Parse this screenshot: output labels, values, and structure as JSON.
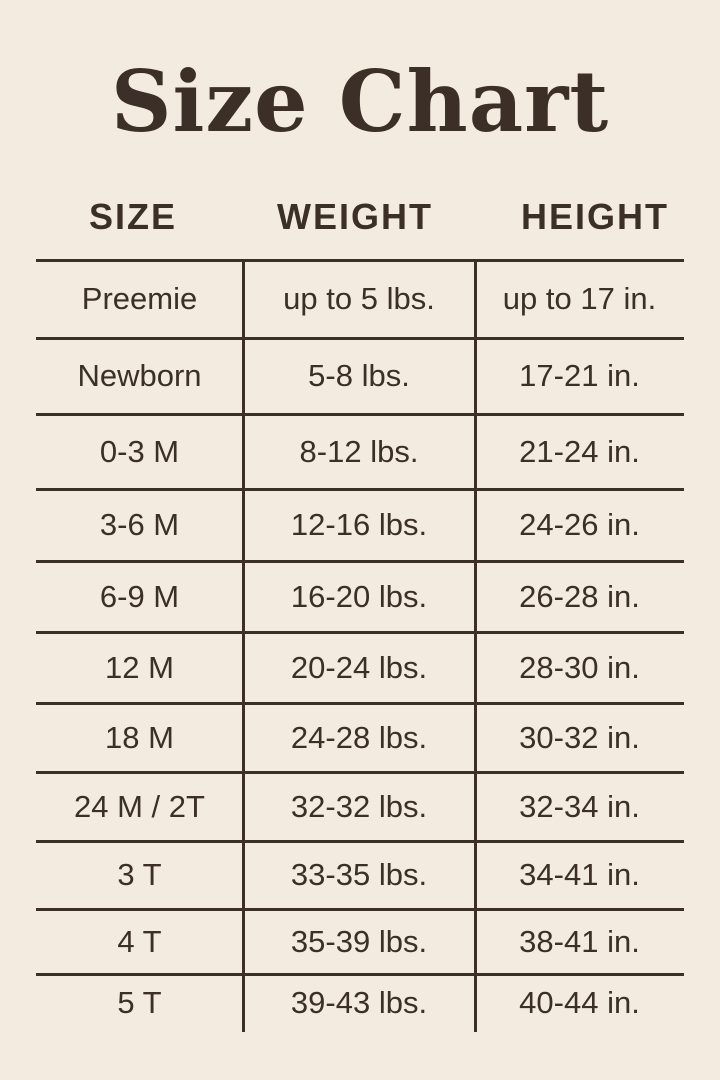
{
  "title": "Size Chart",
  "columns": [
    "SIZE",
    "WEIGHT",
    "HEIGHT"
  ],
  "rows": [
    [
      "Preemie",
      "up to 5 lbs.",
      "up to 17 in."
    ],
    [
      "Newborn",
      "5-8 lbs.",
      "17-21 in."
    ],
    [
      "0-3 M",
      "8-12 lbs.",
      "21-24 in."
    ],
    [
      "3-6 M",
      "12-16 lbs.",
      "24-26 in."
    ],
    [
      "6-9 M",
      "16-20 lbs.",
      "26-28 in."
    ],
    [
      "12 M",
      "20-24 lbs.",
      "28-30 in."
    ],
    [
      "18 M",
      "24-28 lbs.",
      "30-32 in."
    ],
    [
      "24 M / 2T",
      "32-32 lbs.",
      "32-34 in."
    ],
    [
      "3 T",
      "33-35 lbs.",
      "34-41 in."
    ],
    [
      "4 T",
      "35-39 lbs.",
      "38-41 in."
    ],
    [
      "5 T",
      "39-43 lbs.",
      "40-44 in."
    ]
  ],
  "colors": {
    "background": "#f3ebdf",
    "text": "#3b2f27"
  }
}
